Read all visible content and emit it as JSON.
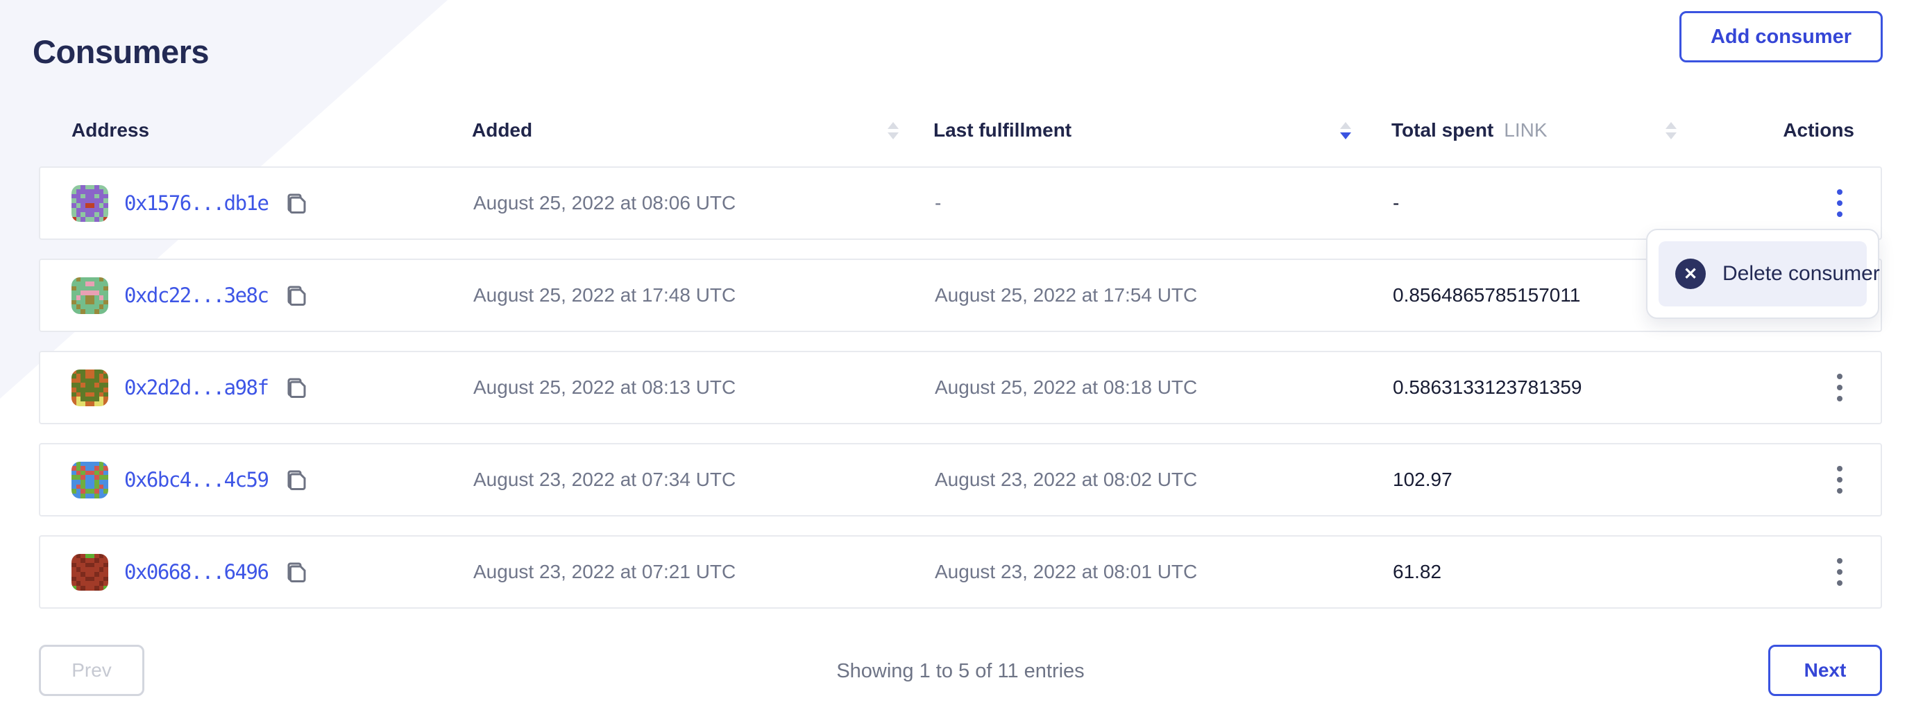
{
  "page": {
    "title": "Consumers"
  },
  "toolbar": {
    "add_button_label": "Add consumer"
  },
  "colors": {
    "accent_blue": "#3a53e0",
    "link_blue": "#3d55e6",
    "title_navy": "#232a54",
    "header_navy": "#20254a",
    "muted_gray": "#70768a",
    "decor_lavender": "#f4f5fb",
    "row_border": "#e8eaef",
    "menu_icon_navy": "#2b3161",
    "menu_item_bg": "#edeff9",
    "disabled_gray": "#c6c9d2"
  },
  "table": {
    "columns": [
      {
        "label": "Address",
        "sortable": false,
        "sort": "none"
      },
      {
        "label": "Added",
        "sortable": true,
        "sort": "none"
      },
      {
        "label": "Last fulfillment",
        "sortable": true,
        "sort": "desc"
      },
      {
        "label": "Total spent",
        "unit": "LINK",
        "sortable": true,
        "sort": "none"
      },
      {
        "label": "Actions",
        "sortable": false,
        "sort": "none"
      }
    ],
    "rows": [
      {
        "address": "0x1576...db1e",
        "added": "August 25, 2022 at 08:06 UTC",
        "last_fulfillment": "-",
        "total_spent": "-",
        "menu_open": true,
        "avatar": {
          "palette": {
            "b": "#8ec7a0",
            "p": "#8a65c9",
            "s": "#bf4127"
          },
          "pattern": [
            "bbpbbpbb",
            "bppppppb",
            "ppbppbpp",
            "bppppppb",
            "pbpsspbp",
            "bppppppb",
            "bpbppbpb",
            "sbpbbpbs"
          ]
        }
      },
      {
        "address": "0xdc22...3e8c",
        "added": "August 25, 2022 at 17:48 UTC",
        "last_fulfillment": "August 25, 2022 at 17:54 UTC",
        "total_spent": "0.8564865785157011",
        "menu_open": false,
        "avatar": {
          "palette": {
            "b": "#74bd8b",
            "p": "#97893c",
            "s": "#e9a0b4"
          },
          "pattern": [
            "bpbbbbpb",
            "bbbssbbb",
            "pbbbbbbp",
            "bbssssbb",
            "bsbppbsb",
            "pbbppbbp",
            "bpbbbbpb",
            "bbpbbpbb"
          ]
        }
      },
      {
        "address": "0x2d2d...a98f",
        "added": "August 25, 2022 at 08:13 UTC",
        "last_fulfillment": "August 25, 2022 at 08:18 UTC",
        "total_spent": "0.5863133123781359",
        "menu_open": false,
        "avatar": {
          "palette": {
            "b": "#c8692c",
            "p": "#5e7a28",
            "s": "#e3dd6a"
          },
          "pattern": [
            "bppbbppb",
            "pbpbbpbp",
            "bbppppbb",
            "ppbppbpp",
            "bppppppb",
            "pbpbbpbp",
            "bsppppsb",
            "bssbbssb"
          ]
        }
      },
      {
        "address": "0x6bc4...4c59",
        "added": "August 23, 2022 at 07:34 UTC",
        "last_fulfillment": "August 23, 2022 at 08:02 UTC",
        "total_spent": "102.97",
        "menu_open": false,
        "avatar": {
          "palette": {
            "b": "#4a8fe0",
            "p": "#6fae3e",
            "s": "#d2574e"
          },
          "pattern": [
            "bpbbbbpb",
            "spsbbsps",
            "bspsspsb",
            "ppsbbspp",
            "bbpbbpbb",
            "bspbbpsb",
            "pbsppsbp",
            "bbpbbpbb"
          ]
        }
      },
      {
        "address": "0x0668...6496",
        "added": "August 23, 2022 at 07:21 UTC",
        "last_fulfillment": "August 23, 2022 at 08:01 UTC",
        "total_spent": "61.82",
        "menu_open": false,
        "avatar": {
          "palette": {
            "b": "#a23b28",
            "p": "#7c2b1d",
            "s": "#5fae33"
          },
          "pattern": [
            "bpbssbpb",
            "bbpbbpbb",
            "pbbppbbp",
            "bpbbbbpb",
            "bbpbbpbb",
            "pbbppbbp",
            "bpbbbbpb",
            "sbpbbpbs"
          ]
        }
      }
    ]
  },
  "row_menu": {
    "delete_label": "Delete consumer"
  },
  "pagination": {
    "prev_label": "Prev",
    "next_label": "Next",
    "summary": "Showing 1 to 5 of 11 entries"
  }
}
